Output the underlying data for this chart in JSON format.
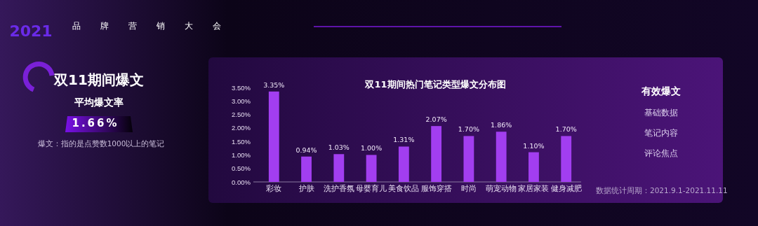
{
  "chart_data": {
    "type": "bar",
    "title": "双11期间热门笔记类型爆文分布图",
    "categories": [
      "彩妆",
      "护肤",
      "洗护香氛",
      "母婴育儿",
      "美食饮品",
      "服饰穿搭",
      "时尚",
      "萌宠动物",
      "家居家装",
      "健身减肥"
    ],
    "values": [
      3.35,
      0.94,
      1.03,
      1.0,
      1.31,
      2.07,
      1.7,
      1.86,
      1.1,
      1.7
    ],
    "value_labels": [
      "3.35%",
      "0.94%",
      "1.03%",
      "1.00%",
      "1.31%",
      "2.07%",
      "1.70%",
      "1.86%",
      "1.10%",
      "1.70%"
    ],
    "color": "#a23ef0",
    "ylim": [
      0,
      3.5
    ],
    "yticks": [
      {
        "value": 0,
        "label": "0.00%"
      },
      {
        "value": 0.5,
        "label": "0.50%"
      },
      {
        "value": 1,
        "label": "1.00%"
      },
      {
        "value": 1.5,
        "label": "1.50%"
      },
      {
        "value": 2,
        "label": "2.00%"
      },
      {
        "value": 2.5,
        "label": "2.50%"
      },
      {
        "value": 3,
        "label": "3.00%"
      },
      {
        "value": 3.5,
        "label": "3.50%"
      }
    ],
    "grid": false,
    "annotations": [
      "2021",
      "品牌营销大会",
      "双11期间爆文",
      "平均爆文率",
      "1.66%",
      "爆文：指的是点赞数1000以上的笔记",
      "有效爆文",
      "基础数据",
      "笔记内容",
      "评论焦点",
      "数据统计周期：2021.9.1-2021.11.11"
    ]
  }
}
